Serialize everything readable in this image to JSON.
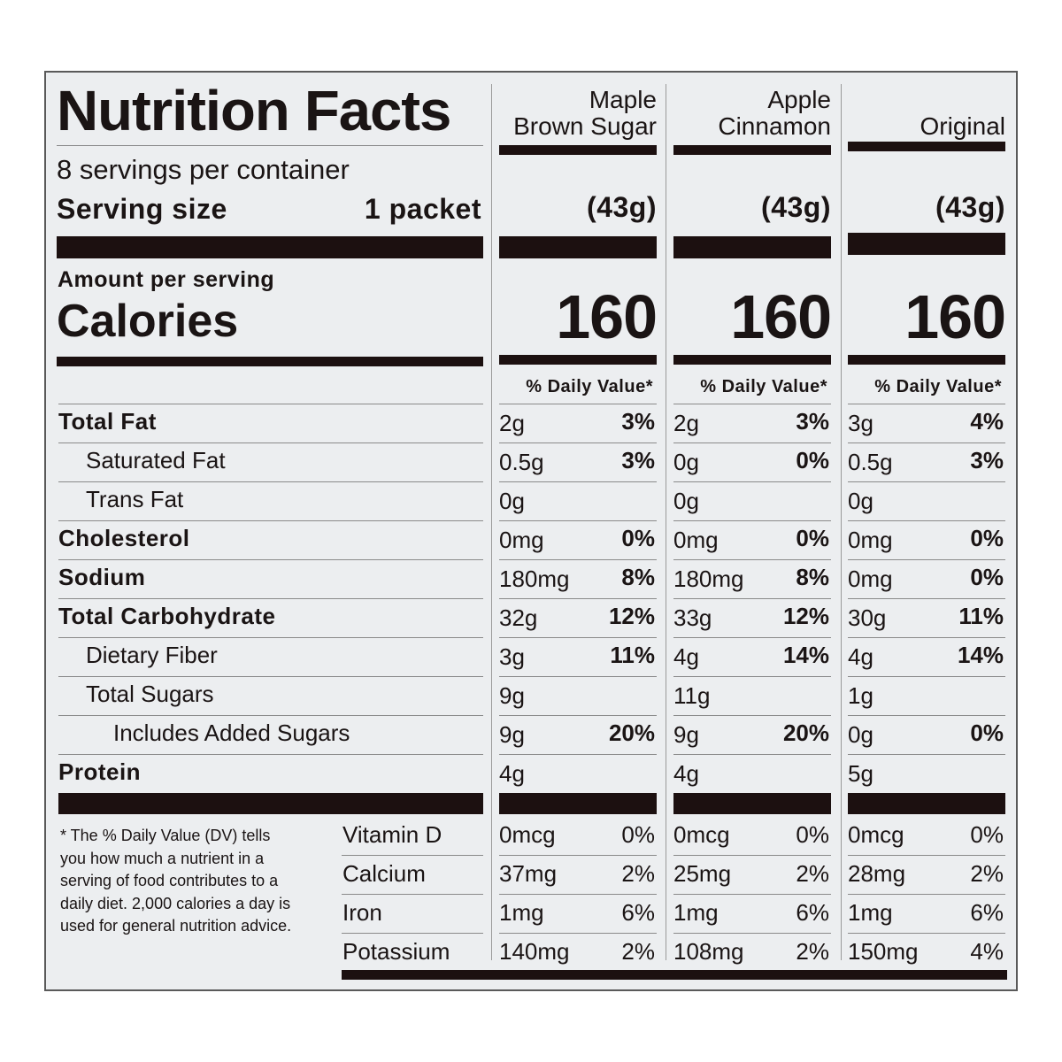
{
  "label": {
    "title": "Nutrition Facts",
    "servings_per_container": "8 servings per container",
    "serving_size_label": "Serving size",
    "serving_size_value": "1 packet",
    "amount_per_serving": "Amount per serving",
    "calories_label": "Calories",
    "daily_value_header": "% Daily Value*"
  },
  "columns": [
    {
      "name_line1": "Maple",
      "name_line2": "Brown Sugar",
      "serving_grams": "(43g)",
      "calories": "160"
    },
    {
      "name_line1": "Apple",
      "name_line2": "Cinnamon",
      "serving_grams": "(43g)",
      "calories": "160"
    },
    {
      "name_line1": "",
      "name_line2": "Original",
      "serving_grams": "(43g)",
      "calories": "160"
    }
  ],
  "nutrients": [
    {
      "label": "Total Fat",
      "bold": true,
      "indent": 0,
      "values": [
        {
          "amount": "2g",
          "dv": "3%"
        },
        {
          "amount": "2g",
          "dv": "3%"
        },
        {
          "amount": "3g",
          "dv": "4%"
        }
      ]
    },
    {
      "label": "Saturated Fat",
      "bold": false,
      "indent": 1,
      "values": [
        {
          "amount": "0.5g",
          "dv": "3%"
        },
        {
          "amount": "0g",
          "dv": "0%"
        },
        {
          "amount": "0.5g",
          "dv": "3%"
        }
      ]
    },
    {
      "label": "Trans Fat",
      "bold": false,
      "indent": 1,
      "values": [
        {
          "amount": "0g",
          "dv": ""
        },
        {
          "amount": "0g",
          "dv": ""
        },
        {
          "amount": "0g",
          "dv": ""
        }
      ]
    },
    {
      "label": "Cholesterol",
      "bold": true,
      "indent": 0,
      "values": [
        {
          "amount": "0mg",
          "dv": "0%"
        },
        {
          "amount": "0mg",
          "dv": "0%"
        },
        {
          "amount": "0mg",
          "dv": "0%"
        }
      ]
    },
    {
      "label": "Sodium",
      "bold": true,
      "indent": 0,
      "values": [
        {
          "amount": "180mg",
          "dv": "8%"
        },
        {
          "amount": "180mg",
          "dv": "8%"
        },
        {
          "amount": "0mg",
          "dv": "0%"
        }
      ]
    },
    {
      "label": "Total Carbohydrate",
      "bold": true,
      "indent": 0,
      "values": [
        {
          "amount": "32g",
          "dv": "12%"
        },
        {
          "amount": "33g",
          "dv": "12%"
        },
        {
          "amount": "30g",
          "dv": "11%"
        }
      ]
    },
    {
      "label": "Dietary Fiber",
      "bold": false,
      "indent": 1,
      "values": [
        {
          "amount": "3g",
          "dv": "11%"
        },
        {
          "amount": "4g",
          "dv": "14%"
        },
        {
          "amount": "4g",
          "dv": "14%"
        }
      ]
    },
    {
      "label": "Total Sugars",
      "bold": false,
      "indent": 1,
      "values": [
        {
          "amount": "9g",
          "dv": ""
        },
        {
          "amount": "11g",
          "dv": ""
        },
        {
          "amount": "1g",
          "dv": ""
        }
      ]
    },
    {
      "label": "Includes Added Sugars",
      "bold": false,
      "indent": 2,
      "values": [
        {
          "amount": "9g",
          "dv": "20%"
        },
        {
          "amount": "9g",
          "dv": "20%"
        },
        {
          "amount": "0g",
          "dv": "0%"
        }
      ]
    },
    {
      "label": "Protein",
      "bold": true,
      "indent": 0,
      "values": [
        {
          "amount": "4g",
          "dv": ""
        },
        {
          "amount": "4g",
          "dv": ""
        },
        {
          "amount": "5g",
          "dv": ""
        }
      ]
    }
  ],
  "vitamins": [
    {
      "label": "Vitamin D",
      "values": [
        {
          "amount": "0mcg",
          "dv": "0%"
        },
        {
          "amount": "0mcg",
          "dv": "0%"
        },
        {
          "amount": "0mcg",
          "dv": "0%"
        }
      ]
    },
    {
      "label": "Calcium",
      "values": [
        {
          "amount": "37mg",
          "dv": "2%"
        },
        {
          "amount": "25mg",
          "dv": "2%"
        },
        {
          "amount": "28mg",
          "dv": "2%"
        }
      ]
    },
    {
      "label": "Iron",
      "values": [
        {
          "amount": "1mg",
          "dv": "6%"
        },
        {
          "amount": "1mg",
          "dv": "6%"
        },
        {
          "amount": "1mg",
          "dv": "6%"
        }
      ]
    },
    {
      "label": "Potassium",
      "values": [
        {
          "amount": "140mg",
          "dv": "2%"
        },
        {
          "amount": "108mg",
          "dv": "2%"
        },
        {
          "amount": "150mg",
          "dv": "4%"
        }
      ]
    }
  ],
  "footnote": "* The % Daily Value (DV) tells you how much a nutrient in a serving of food contributes to a daily diet. 2,000 calories a day is used for general nutrition advice.",
  "colors": {
    "ink": "#1c1010",
    "background": "#eceef0",
    "rule": "#8a8a8a"
  }
}
